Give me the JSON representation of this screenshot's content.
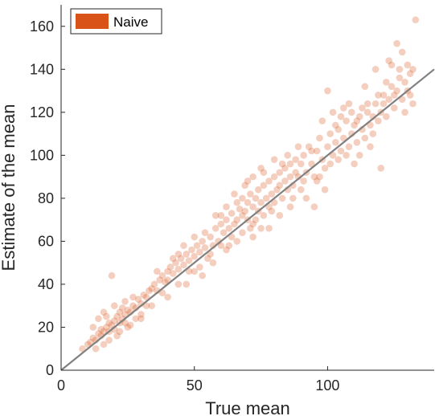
{
  "chart_data": {
    "type": "scatter",
    "xlabel": "True mean",
    "ylabel": "Estimate of the mean",
    "xlim": [
      0,
      140
    ],
    "ylim": [
      0,
      170
    ],
    "x_ticks": [
      0,
      50,
      100
    ],
    "y_ticks": [
      0,
      20,
      40,
      60,
      80,
      100,
      120,
      140,
      160
    ],
    "grid": false,
    "legend_position": "top-left",
    "series": [
      {
        "name": "Naive",
        "color": "#D95319",
        "points": [
          [
            8,
            10
          ],
          [
            10,
            12
          ],
          [
            11,
            13
          ],
          [
            12,
            15
          ],
          [
            13,
            14
          ],
          [
            14,
            17
          ],
          [
            15,
            16
          ],
          [
            15,
            19
          ],
          [
            16,
            18
          ],
          [
            17,
            20
          ],
          [
            18,
            18
          ],
          [
            18,
            22
          ],
          [
            19,
            21
          ],
          [
            20,
            23
          ],
          [
            20,
            19
          ],
          [
            21,
            25
          ],
          [
            22,
            22
          ],
          [
            22,
            27
          ],
          [
            23,
            24
          ],
          [
            24,
            26
          ],
          [
            24,
            22
          ],
          [
            25,
            28
          ],
          [
            26,
            27
          ],
          [
            27,
            30
          ],
          [
            28,
            29
          ],
          [
            29,
            33
          ],
          [
            30,
            31
          ],
          [
            31,
            35
          ],
          [
            32,
            34
          ],
          [
            33,
            37
          ],
          [
            12,
            20
          ],
          [
            14,
            24
          ],
          [
            16,
            27
          ],
          [
            18,
            14
          ],
          [
            20,
            30
          ],
          [
            22,
            18
          ],
          [
            24,
            32
          ],
          [
            26,
            21
          ],
          [
            19,
            44
          ],
          [
            28,
            24
          ],
          [
            16,
            12
          ],
          [
            21,
            16
          ],
          [
            25,
            20
          ],
          [
            13,
            10
          ],
          [
            17,
            25
          ],
          [
            23,
            29
          ],
          [
            27,
            34
          ],
          [
            30,
            26
          ],
          [
            32,
            30
          ],
          [
            34,
            38
          ],
          [
            35,
            40
          ],
          [
            36,
            37
          ],
          [
            37,
            42
          ],
          [
            38,
            44
          ],
          [
            39,
            41
          ],
          [
            40,
            46
          ],
          [
            41,
            48
          ],
          [
            42,
            45
          ],
          [
            43,
            50
          ],
          [
            44,
            47
          ],
          [
            45,
            52
          ],
          [
            46,
            49
          ],
          [
            47,
            54
          ],
          [
            48,
            51
          ],
          [
            49,
            56
          ],
          [
            50,
            53
          ],
          [
            51,
            58
          ],
          [
            52,
            55
          ],
          [
            53,
            60
          ],
          [
            54,
            57
          ],
          [
            38,
            36
          ],
          [
            40,
            42
          ],
          [
            42,
            52
          ],
          [
            44,
            40
          ],
          [
            46,
            58
          ],
          [
            48,
            46
          ],
          [
            50,
            62
          ],
          [
            52,
            48
          ],
          [
            54,
            64
          ],
          [
            55,
            52
          ],
          [
            56,
            62
          ],
          [
            57,
            58
          ],
          [
            58,
            66
          ],
          [
            59,
            60
          ],
          [
            60,
            68
          ],
          [
            61,
            64
          ],
          [
            62,
            70
          ],
          [
            63,
            66
          ],
          [
            64,
            73
          ],
          [
            65,
            68
          ],
          [
            56,
            54
          ],
          [
            58,
            72
          ],
          [
            60,
            58
          ],
          [
            62,
            76
          ],
          [
            64,
            62
          ],
          [
            66,
            78
          ],
          [
            66,
            70
          ],
          [
            67,
            75
          ],
          [
            68,
            72
          ],
          [
            68,
            80
          ],
          [
            69,
            74
          ],
          [
            70,
            78
          ],
          [
            70,
            70
          ],
          [
            71,
            82
          ],
          [
            72,
            76
          ],
          [
            72,
            68
          ],
          [
            73,
            80
          ],
          [
            74,
            84
          ],
          [
            74,
            74
          ],
          [
            75,
            78
          ],
          [
            76,
            86
          ],
          [
            76,
            72
          ],
          [
            77,
            80
          ],
          [
            78,
            88
          ],
          [
            78,
            76
          ],
          [
            79,
            82
          ],
          [
            80,
            90
          ],
          [
            80,
            78
          ],
          [
            81,
            84
          ],
          [
            82,
            86
          ],
          [
            82,
            92
          ],
          [
            83,
            80
          ],
          [
            84,
            88
          ],
          [
            84,
            94
          ],
          [
            85,
            84
          ],
          [
            86,
            90
          ],
          [
            86,
            96
          ],
          [
            87,
            86
          ],
          [
            88,
            92
          ],
          [
            88,
            98
          ],
          [
            70,
            88
          ],
          [
            72,
            62
          ],
          [
            75,
            94
          ],
          [
            78,
            66
          ],
          [
            80,
            98
          ],
          [
            82,
            72
          ],
          [
            85,
            100
          ],
          [
            86,
            76
          ],
          [
            89,
            90
          ],
          [
            90,
            96
          ],
          [
            90,
            84
          ],
          [
            91,
            100
          ],
          [
            92,
            92
          ],
          [
            93,
            104
          ],
          [
            94,
            96
          ],
          [
            95,
            90
          ],
          [
            96,
            102
          ],
          [
            97,
            108
          ],
          [
            98,
            98
          ],
          [
            99,
            94
          ],
          [
            100,
            104
          ],
          [
            101,
            110
          ],
          [
            102,
            100
          ],
          [
            103,
            106
          ],
          [
            104,
            112
          ],
          [
            105,
            102
          ],
          [
            106,
            108
          ],
          [
            107,
            116
          ],
          [
            108,
            104
          ],
          [
            109,
            110
          ],
          [
            110,
            114
          ],
          [
            111,
            106
          ],
          [
            112,
            118
          ],
          [
            113,
            112
          ],
          [
            114,
            108
          ],
          [
            115,
            120
          ],
          [
            116,
            114
          ],
          [
            117,
            110
          ],
          [
            118,
            124
          ],
          [
            119,
            116
          ],
          [
            120,
            120
          ],
          [
            121,
            128
          ],
          [
            122,
            118
          ],
          [
            123,
            126
          ],
          [
            124,
            132
          ],
          [
            125,
            122
          ],
          [
            126,
            130
          ],
          [
            127,
            136
          ],
          [
            128,
            126
          ],
          [
            129,
            134
          ],
          [
            130,
            130
          ],
          [
            131,
            138
          ],
          [
            132,
            140
          ],
          [
            133,
            163
          ],
          [
            123,
            144
          ],
          [
            126,
            152
          ],
          [
            120,
            94
          ],
          [
            128,
            148
          ],
          [
            132,
            124
          ],
          [
            124,
            142
          ],
          [
            62,
            56
          ],
          [
            66,
            60
          ],
          [
            69,
            86
          ],
          [
            72,
            90
          ],
          [
            92,
            80
          ],
          [
            96,
            88
          ],
          [
            98,
            116
          ],
          [
            102,
            120
          ],
          [
            108,
            124
          ],
          [
            110,
            96
          ],
          [
            100,
            130
          ],
          [
            104,
            98
          ],
          [
            106,
            122
          ],
          [
            112,
            100
          ],
          [
            114,
            132
          ],
          [
            116,
            104
          ],
          [
            118,
            140
          ],
          [
            95,
            76
          ],
          [
            99,
            84
          ],
          [
            75,
            66
          ],
          [
            30,
            24
          ],
          [
            34,
            30
          ],
          [
            36,
            46
          ],
          [
            40,
            34
          ],
          [
            44,
            54
          ],
          [
            47,
            40
          ],
          [
            50,
            46
          ],
          [
            53,
            44
          ],
          [
            57,
            50
          ],
          [
            60,
            72
          ],
          [
            63,
            58
          ],
          [
            65,
            82
          ],
          [
            68,
            64
          ],
          [
            71,
            66
          ],
          [
            73,
            70
          ],
          [
            76,
            92
          ],
          [
            79,
            74
          ],
          [
            83,
            96
          ],
          [
            87,
            80
          ],
          [
            89,
            104
          ],
          [
            91,
            88
          ],
          [
            94,
            102
          ],
          [
            97,
            90
          ],
          [
            101,
            96
          ],
          [
            103,
            114
          ],
          [
            105,
            118
          ],
          [
            107,
            100
          ],
          [
            109,
            120
          ],
          [
            111,
            116
          ],
          [
            113,
            122
          ],
          [
            115,
            124
          ],
          [
            117,
            118
          ],
          [
            119,
            128
          ],
          [
            121,
            124
          ],
          [
            122,
            134
          ],
          [
            125,
            128
          ],
          [
            127,
            140
          ],
          [
            129,
            120
          ],
          [
            131,
            128
          ],
          [
            130,
            142
          ]
        ]
      }
    ],
    "reference_line": {
      "from": [
        0,
        0
      ],
      "to": [
        140,
        140
      ],
      "color": "#808080"
    }
  }
}
